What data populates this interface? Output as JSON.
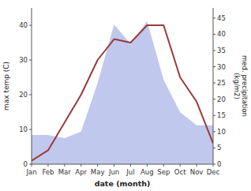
{
  "chart_data": {
    "type": "line",
    "xlabel": "date (month)",
    "ylabel": "max temp (C)",
    "y2label": "med. precipitation\n(kg/m2)",
    "categories": [
      "Jan",
      "Feb",
      "Mar",
      "Apr",
      "May",
      "Jun",
      "Jul",
      "Aug",
      "Sep",
      "Oct",
      "Nov",
      "Dec"
    ],
    "series": [
      {
        "type": "area",
        "axis": "y2",
        "color": "#c0c8ee",
        "values": [
          9,
          9,
          8,
          10,
          25,
          43,
          37,
          44,
          26,
          16,
          12,
          12
        ]
      },
      {
        "type": "line",
        "color": "#9b3a3a",
        "values": [
          1,
          4,
          12,
          20,
          30,
          36,
          35,
          40,
          40,
          25,
          18,
          6
        ]
      }
    ],
    "ylim": [
      0,
      45
    ],
    "yticks": [
      0,
      10,
      20,
      30,
      40
    ],
    "y2lim": [
      0,
      48.125
    ],
    "y2ticks": [
      0,
      5,
      10,
      15,
      20,
      25,
      30,
      35,
      40,
      45
    ],
    "grid": false
  }
}
